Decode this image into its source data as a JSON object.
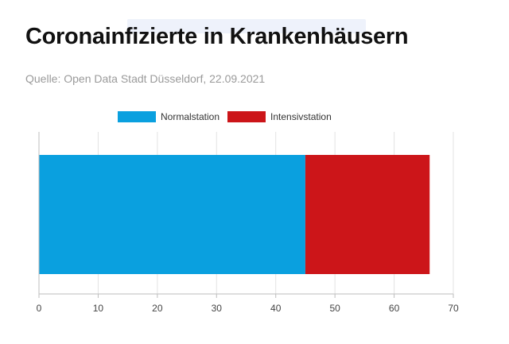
{
  "header": {
    "title": "Coronainfizierte in Krankenhäusern",
    "subtitle": "Quelle: Open Data Stadt Düsseldorf, 22.09.2021"
  },
  "colors": {
    "normalstation": "#0aa0df",
    "intensivstation": "#cc1519",
    "grid": "#e3e3e3",
    "axis": "#bdbdbd"
  },
  "chart_data": {
    "type": "bar",
    "orientation": "horizontal",
    "stacked": true,
    "title": "Coronainfizierte in Krankenhäusern",
    "subtitle": "Quelle: Open Data Stadt Düsseldorf, 22.09.2021",
    "categories": [
      ""
    ],
    "series": [
      {
        "name": "Normalstation",
        "values": [
          45
        ],
        "color": "#0aa0df"
      },
      {
        "name": "Intensivstation",
        "values": [
          21
        ],
        "color": "#cc1519"
      }
    ],
    "xlim": [
      0,
      70
    ],
    "xticks": [
      0,
      10,
      20,
      30,
      40,
      50,
      60,
      70
    ],
    "grid": true,
    "legend": "top-center"
  }
}
